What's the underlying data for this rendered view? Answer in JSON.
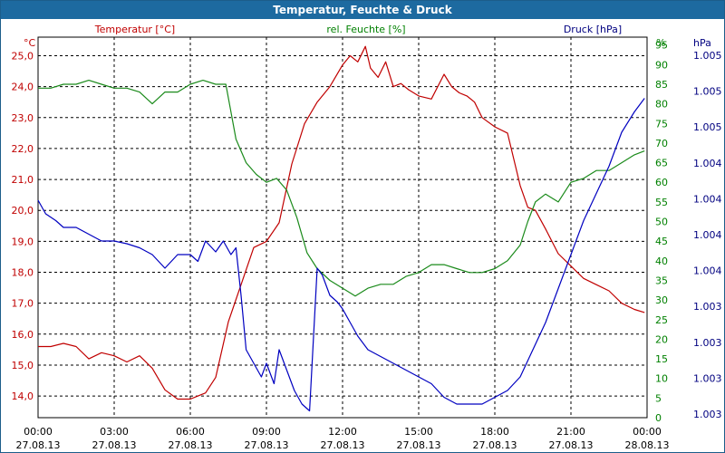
{
  "window": {
    "title": "Temperatur, Feuchte & Druck"
  },
  "colors": {
    "temperature": "#c00000",
    "humidity": "#1a8a1a",
    "pressure": "#0000c0",
    "humidity_label": "#008000",
    "pressure_label": "#000080",
    "grid": "#000000"
  },
  "chart_data": {
    "type": "line",
    "title": "Temperatur, Feuchte & Druck",
    "grid": true,
    "x_ticks": [
      {
        "time": "00:00",
        "date": "27.08.13"
      },
      {
        "time": "03:00",
        "date": "27.08.13"
      },
      {
        "time": "06:00",
        "date": "27.08.13"
      },
      {
        "time": "09:00",
        "date": "27.08.13"
      },
      {
        "time": "12:00",
        "date": "27.08.13"
      },
      {
        "time": "15:00",
        "date": "27.08.13"
      },
      {
        "time": "18:00",
        "date": "27.08.13"
      },
      {
        "time": "21:00",
        "date": "27.08.13"
      },
      {
        "time": "00:00",
        "date": "28.08.13"
      }
    ],
    "x_range_hours": [
      0,
      24
    ],
    "axes": {
      "temperature": {
        "label": "Temperatur [°C]",
        "unit": "°C",
        "side": "left",
        "min": 13.3,
        "max": 25.6,
        "ticks": [
          "14,0",
          "15,0",
          "16,0",
          "17,0",
          "18,0",
          "19,0",
          "20,0",
          "21,0",
          "22,0",
          "23,0",
          "24,0",
          "25,0"
        ]
      },
      "humidity": {
        "label": "rel. Feuchte [%]",
        "unit": "%",
        "side": "right",
        "min": 0,
        "max": 97,
        "ticks": [
          "0",
          "5",
          "10",
          "15",
          "20",
          "25",
          "30",
          "35",
          "40",
          "45",
          "50",
          "55",
          "60",
          "65",
          "70",
          "75",
          "80",
          "85",
          "90",
          "95"
        ]
      },
      "pressure": {
        "label": "Druck [hPa]",
        "unit": "hPa",
        "side": "right",
        "min": 1002.9,
        "max": 1005.7,
        "ticks": [
          "1.003",
          "1.003",
          "1.003",
          "1.003",
          "1.004",
          "1.004",
          "1.004",
          "1.004",
          "1.005",
          "1.005",
          "1.005"
        ]
      }
    },
    "series": [
      {
        "name": "Temperatur [°C]",
        "axis": "temperature",
        "x": [
          0,
          0.5,
          1,
          1.5,
          2,
          2.5,
          3,
          3.5,
          4,
          4.5,
          5,
          5.5,
          6,
          6.3,
          6.6,
          7,
          7.5,
          8,
          8.5,
          9,
          9.5,
          10,
          10.5,
          11,
          11.5,
          12,
          12.3,
          12.6,
          12.9,
          13.1,
          13.4,
          13.7,
          14,
          14.3,
          14.6,
          15,
          15.5,
          16,
          16.3,
          16.6,
          16.9,
          17.2,
          17.5,
          18,
          18.5,
          19,
          19.3,
          19.6,
          20,
          20.5,
          21,
          21.5,
          22,
          22.5,
          23,
          23.5,
          23.9
        ],
        "y": [
          15.6,
          15.6,
          15.7,
          15.6,
          15.2,
          15.4,
          15.3,
          15.1,
          15.3,
          14.9,
          14.2,
          13.9,
          13.9,
          14.0,
          14.1,
          14.6,
          16.4,
          17.6,
          18.8,
          19.0,
          19.6,
          21.5,
          22.8,
          23.5,
          24.0,
          24.7,
          25.0,
          24.8,
          25.3,
          24.6,
          24.3,
          24.8,
          24.0,
          24.1,
          23.9,
          23.7,
          23.6,
          24.4,
          24.0,
          23.8,
          23.7,
          23.5,
          23.0,
          22.7,
          22.5,
          20.8,
          20.1,
          20.0,
          19.4,
          18.6,
          18.2,
          17.8,
          17.6,
          17.4,
          17.0,
          16.8,
          16.7
        ]
      },
      {
        "name": "rel. Feuchte [%]",
        "axis": "humidity",
        "x": [
          0,
          0.5,
          1,
          1.5,
          2,
          2.5,
          3,
          3.5,
          4,
          4.5,
          5,
          5.5,
          6,
          6.5,
          7,
          7.4,
          7.8,
          8.2,
          8.6,
          9,
          9.4,
          9.8,
          10.2,
          10.6,
          11,
          11.5,
          12,
          12.5,
          13,
          13.5,
          14,
          14.5,
          15,
          15.5,
          16,
          16.5,
          17,
          17.5,
          18,
          18.5,
          19,
          19.3,
          19.6,
          20,
          20.5,
          21,
          21.5,
          22,
          22.5,
          23,
          23.5,
          23.9
        ],
        "y": [
          84,
          84,
          85,
          85,
          86,
          85,
          84,
          84,
          83,
          80,
          83,
          83,
          85,
          86,
          85,
          85,
          71,
          65,
          62,
          60,
          61,
          58,
          51,
          42,
          38,
          35,
          33,
          31,
          33,
          34,
          34,
          36,
          37,
          39,
          39,
          38,
          37,
          37,
          38,
          40,
          44,
          50,
          55,
          57,
          55,
          60,
          61,
          63,
          63,
          65,
          67,
          68
        ]
      },
      {
        "name": "Druck [hPa]",
        "axis": "pressure",
        "x": [
          0,
          0.3,
          0.7,
          1,
          1.5,
          2,
          2.5,
          3,
          3.5,
          4,
          4.5,
          5,
          5.5,
          6,
          6.3,
          6.6,
          7,
          7.3,
          7.6,
          7.8,
          8,
          8.2,
          8.5,
          8.8,
          9,
          9.3,
          9.5,
          9.8,
          10.1,
          10.4,
          10.7,
          11,
          11.2,
          11.5,
          11.8,
          12,
          12.3,
          12.6,
          13,
          13.5,
          14,
          14.5,
          15,
          15.5,
          16,
          16.5,
          17,
          17.5,
          18,
          18.5,
          19,
          19.5,
          20,
          20.5,
          21,
          21.5,
          22,
          22.5,
          23,
          23.5,
          23.9
        ],
        "y": [
          1004.5,
          1004.4,
          1004.35,
          1004.3,
          1004.3,
          1004.25,
          1004.2,
          1004.2,
          1004.18,
          1004.15,
          1004.1,
          1004.0,
          1004.1,
          1004.1,
          1004.05,
          1004.2,
          1004.12,
          1004.2,
          1004.1,
          1004.15,
          1003.8,
          1003.4,
          1003.3,
          1003.2,
          1003.3,
          1003.15,
          1003.4,
          1003.25,
          1003.1,
          1003.0,
          1002.95,
          1004.0,
          1003.95,
          1003.8,
          1003.75,
          1003.7,
          1003.6,
          1003.5,
          1003.4,
          1003.35,
          1003.3,
          1003.25,
          1003.2,
          1003.15,
          1003.05,
          1003.0,
          1003.0,
          1003.0,
          1003.05,
          1003.1,
          1003.2,
          1003.4,
          1003.6,
          1003.85,
          1004.1,
          1004.35,
          1004.55,
          1004.75,
          1005.0,
          1005.15,
          1005.25
        ]
      }
    ]
  }
}
